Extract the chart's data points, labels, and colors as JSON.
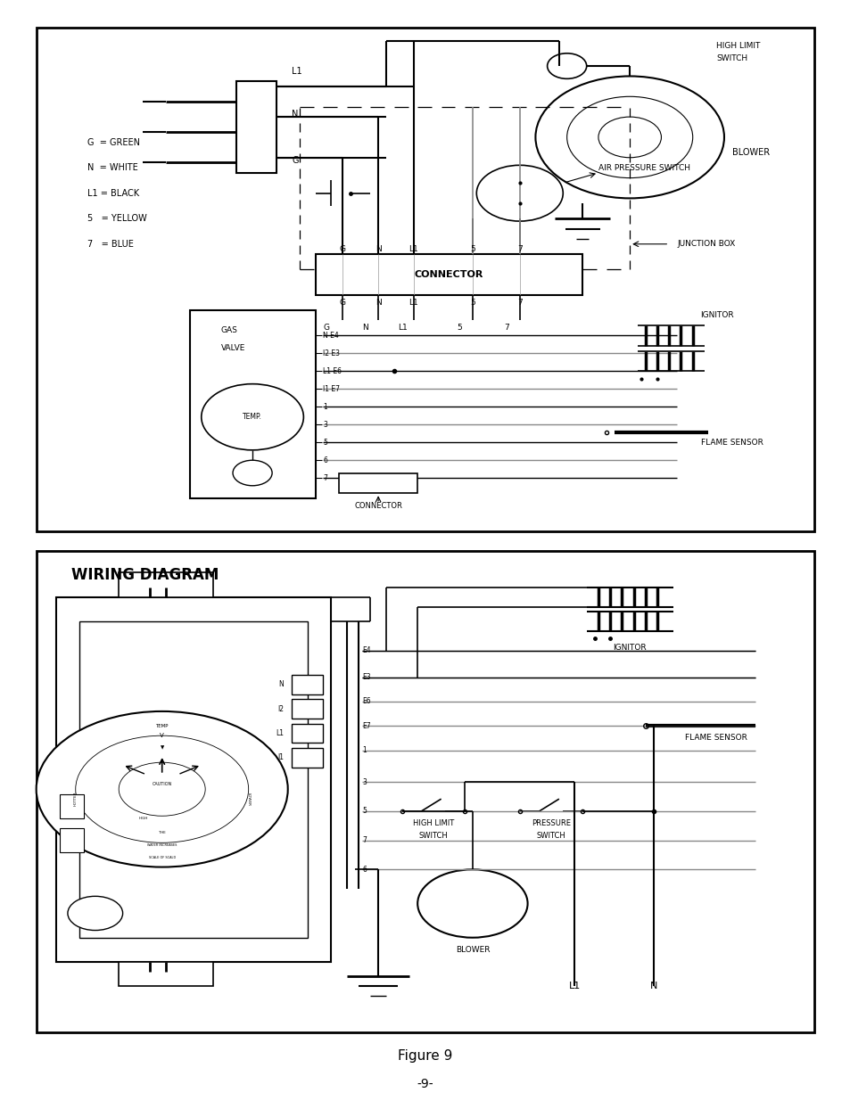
{
  "bg": "#ffffff",
  "lc": "#000000",
  "gc": "#888888",
  "figure_caption": "Figure 9",
  "page_number": "-9-",
  "bottom_title": "WIRING DIAGRAM",
  "legend": [
    "G  = GREEN",
    "N  = WHITE",
    "L1 = BLACK",
    "5   = YELLOW",
    "7   = BLUE"
  ],
  "conn_labels": [
    "G",
    "N",
    "L1",
    "5",
    "7"
  ],
  "gas_terminals": [
    "N E4",
    "I2 E3",
    "L1 E6",
    "I1 E7",
    "1",
    "3",
    "5",
    "6",
    "7"
  ],
  "e_labels": [
    "E4",
    "E3",
    "E6",
    "E7",
    "1",
    "3",
    "5",
    "7",
    "6"
  ],
  "nl_labels": [
    "N",
    "I2",
    "L1",
    "I1"
  ]
}
